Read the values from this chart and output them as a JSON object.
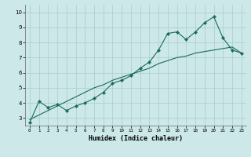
{
  "xlabel": "Humidex (Indice chaleur)",
  "bg_color": "#cce8e8",
  "grid_color": "#aacccc",
  "line_color": "#1a6b5a",
  "xlim": [
    -0.5,
    23.5
  ],
  "ylim": [
    2.5,
    10.5
  ],
  "xticks": [
    0,
    1,
    2,
    3,
    4,
    5,
    6,
    7,
    8,
    9,
    10,
    11,
    12,
    13,
    14,
    15,
    16,
    17,
    18,
    19,
    20,
    21,
    22,
    23
  ],
  "yticks": [
    3,
    4,
    5,
    6,
    7,
    8,
    9,
    10
  ],
  "line1_x": [
    0,
    1,
    2,
    3,
    4,
    5,
    6,
    7,
    8,
    9,
    10,
    11,
    12,
    13,
    14,
    15,
    16,
    17,
    18,
    19,
    20,
    21,
    22,
    23
  ],
  "line1_y": [
    2.7,
    4.1,
    3.7,
    3.9,
    3.5,
    3.8,
    4.0,
    4.3,
    4.7,
    5.3,
    5.5,
    5.8,
    6.3,
    6.7,
    7.5,
    8.6,
    8.7,
    8.2,
    8.7,
    9.3,
    9.7,
    8.3,
    7.5,
    7.3
  ],
  "line2_x": [
    0,
    1,
    2,
    3,
    4,
    5,
    6,
    7,
    8,
    9,
    10,
    11,
    12,
    13,
    14,
    15,
    16,
    17,
    18,
    19,
    20,
    21,
    22,
    23
  ],
  "line2_y": [
    2.9,
    3.2,
    3.5,
    3.8,
    4.1,
    4.4,
    4.7,
    5.0,
    5.2,
    5.5,
    5.7,
    5.9,
    6.1,
    6.3,
    6.6,
    6.8,
    7.0,
    7.1,
    7.3,
    7.4,
    7.5,
    7.6,
    7.7,
    7.3
  ]
}
